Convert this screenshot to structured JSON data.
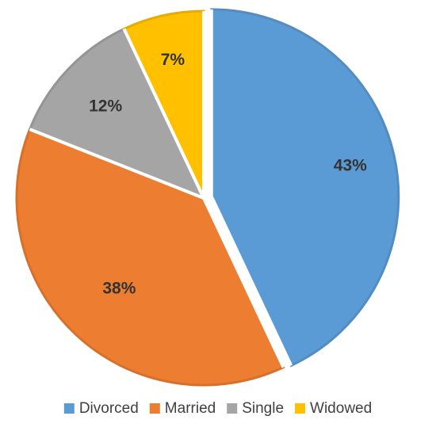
{
  "chart_data": {
    "type": "pie",
    "title": "",
    "categories": [
      "Divorced",
      "Married",
      "Single",
      "Widowed"
    ],
    "values": [
      43,
      38,
      12,
      7
    ],
    "labels": [
      "43%",
      "38%",
      "12%",
      "7%"
    ],
    "colors": [
      "#5B9BD5",
      "#ED7D31",
      "#A5A5A5",
      "#FFC000"
    ],
    "legend": "bottom",
    "exploded": true
  }
}
